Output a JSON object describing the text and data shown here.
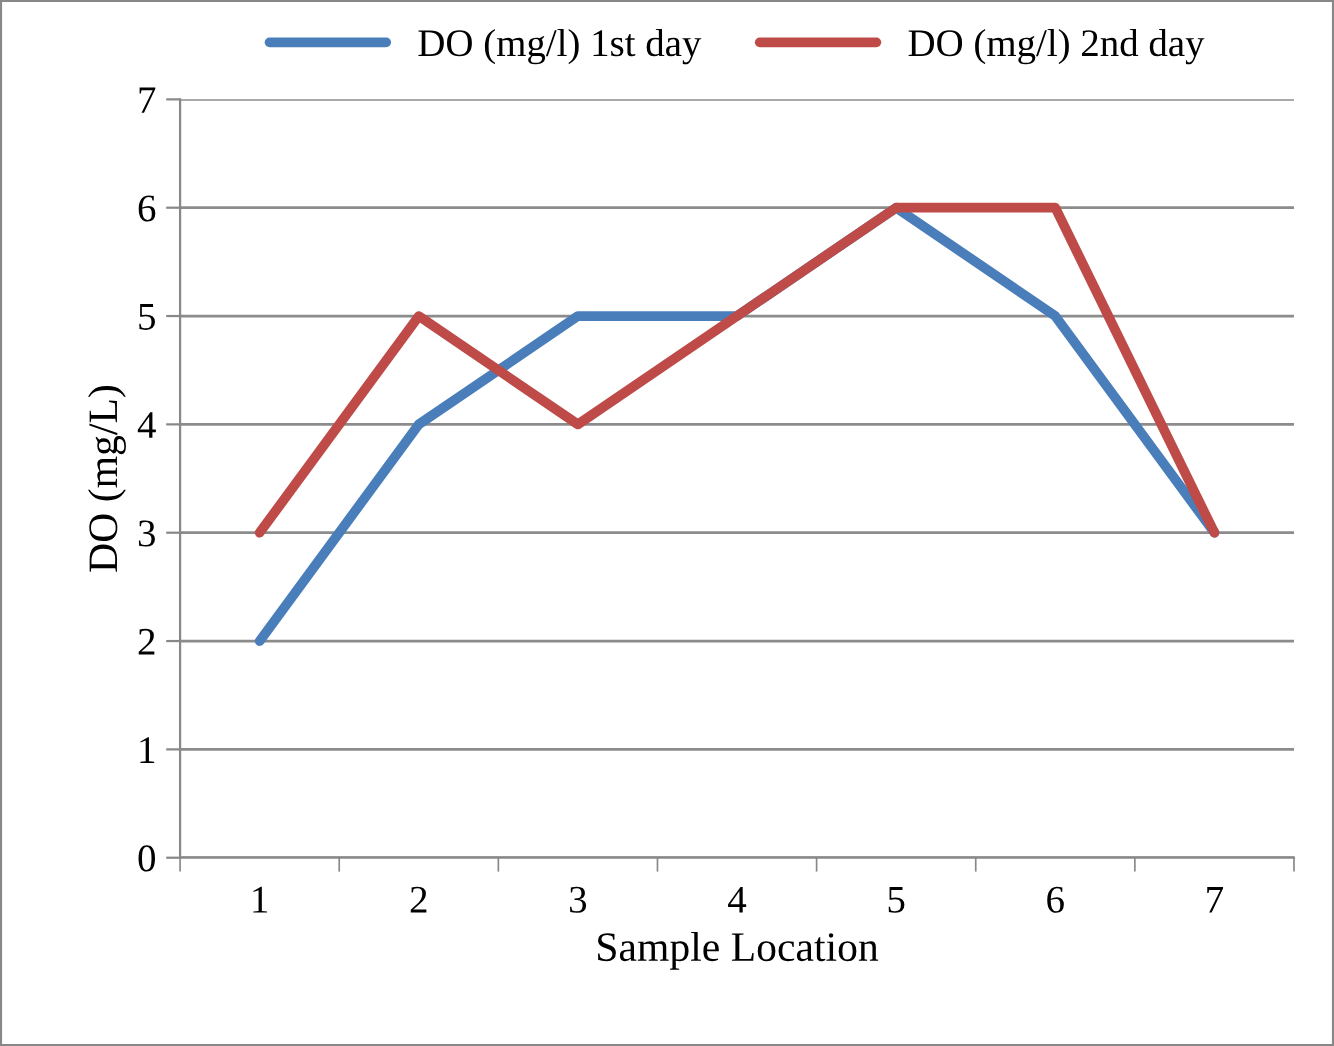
{
  "chart_data": {
    "type": "line",
    "xlabel": "Sample Location",
    "ylabel": "DO (mg/L)",
    "categories": [
      "1",
      "2",
      "3",
      "4",
      "5",
      "6",
      "7"
    ],
    "series": [
      {
        "name": "DO (mg/l) 1st day",
        "color": "#4a7ebb",
        "values": [
          2,
          4,
          5,
          5,
          6,
          5,
          3
        ]
      },
      {
        "name": "DO (mg/l) 2nd day",
        "color": "#be4b48",
        "values": [
          3,
          5,
          4,
          5,
          6,
          6,
          3
        ]
      }
    ],
    "ylim": [
      0,
      7
    ],
    "yticks": [
      0,
      1,
      2,
      3,
      4,
      5,
      6,
      7
    ],
    "grid": "y",
    "legend": "top",
    "marker": "none",
    "line_style": "solid"
  }
}
